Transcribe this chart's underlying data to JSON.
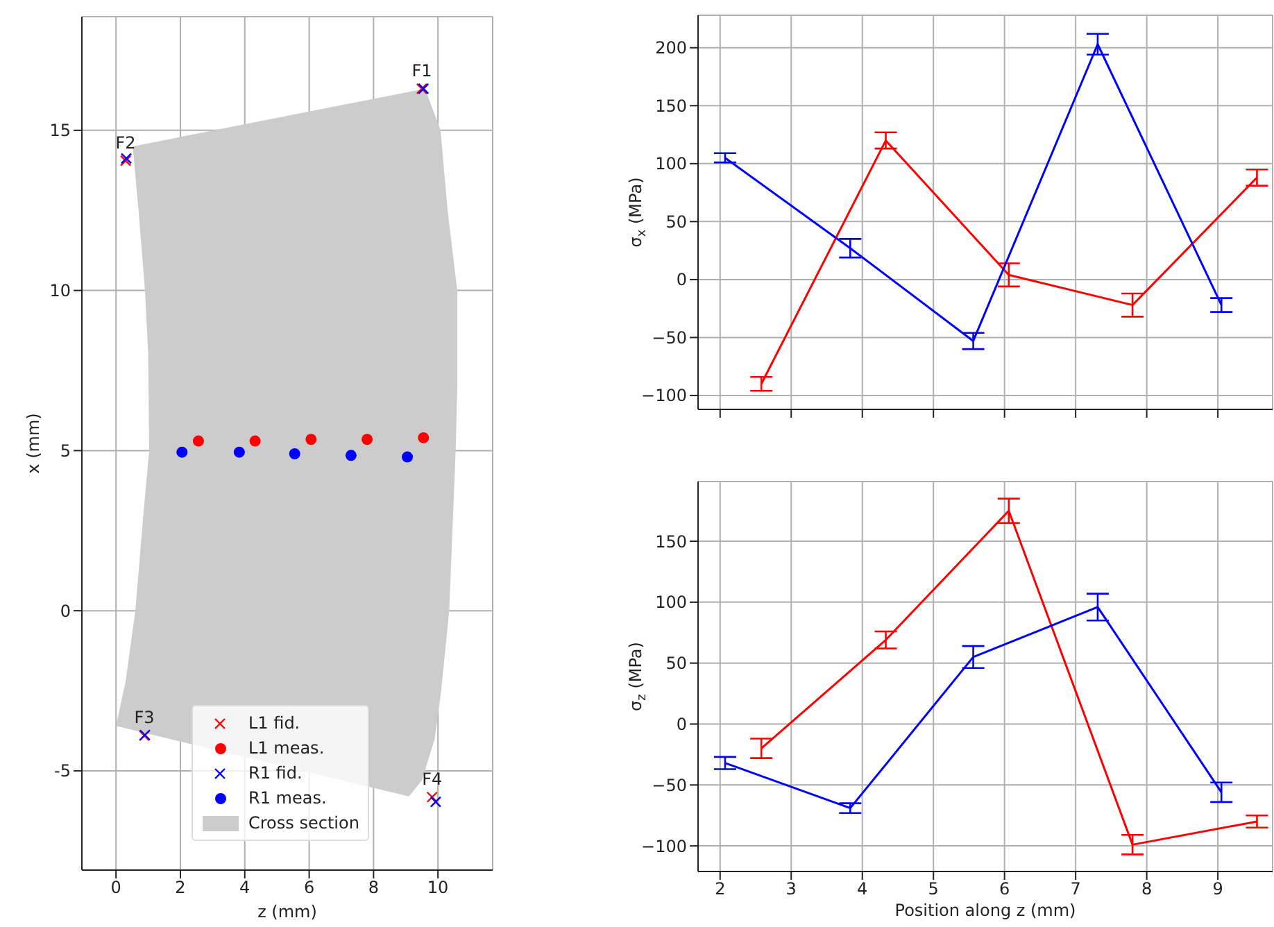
{
  "chart_data": [
    {
      "type": "scatter",
      "xlabel": "z (mm)",
      "ylabel": "x (mm)",
      "xlim": [
        -1.06,
        11.7
      ],
      "ylim": [
        -8.1,
        18.55
      ],
      "xticks": [
        0,
        2,
        4,
        6,
        8,
        10
      ],
      "yticks": [
        -5,
        0,
        5,
        10,
        15
      ],
      "grid": true,
      "legend": "bottom",
      "annotations": [
        {
          "text": "F1",
          "x": 9.5,
          "y": 16.3
        },
        {
          "text": "F2",
          "x": 0.3,
          "y": 14.05
        },
        {
          "text": "F3",
          "x": 0.88,
          "y": -3.9
        },
        {
          "text": "F4",
          "x": 9.82,
          "y": -5.82
        }
      ],
      "series": [
        {
          "name": "Cross section",
          "type": "area",
          "color": "#cccccc",
          "x": [
            0.52,
            9.6,
            10.08,
            10.3,
            10.6,
            10.6,
            10.55,
            10.35,
            10.1,
            9.9,
            9.5,
            9.1,
            0,
            0.3,
            0.6,
            0.85,
            1.03,
            1.0,
            0.9,
            0.7,
            0.52
          ],
          "values": [
            14.5,
            16.3,
            15,
            12.5,
            10,
            7,
            5,
            0,
            -2.5,
            -4,
            -5.3,
            -5.8,
            -3.6,
            -2.2,
            0,
            3,
            5,
            8,
            10,
            12.5,
            14.5
          ]
        },
        {
          "name": "L1 fid.",
          "color": "#ff0000",
          "marker": "cross",
          "x": [
            9.5,
            0.3,
            0.88,
            9.82
          ],
          "values": [
            16.3,
            14.05,
            -3.9,
            -5.82
          ]
        },
        {
          "name": "L1 meas.",
          "color": "#ff0000",
          "marker": "circle",
          "x": [
            2.56,
            4.32,
            6.06,
            7.8,
            9.55
          ],
          "values": [
            5.3,
            5.3,
            5.35,
            5.35,
            5.4
          ]
        },
        {
          "name": "R1 fid.",
          "color": "#0000ff",
          "marker": "cross",
          "x": [
            9.55,
            0.32,
            0.9,
            9.93
          ],
          "values": [
            16.3,
            14.12,
            -3.88,
            -5.97
          ]
        },
        {
          "name": "R1 meas.",
          "color": "#0000ff",
          "marker": "circle",
          "x": [
            2.05,
            3.83,
            5.55,
            7.3,
            9.05
          ],
          "values": [
            4.95,
            4.95,
            4.9,
            4.85,
            4.8
          ]
        }
      ]
    },
    {
      "type": "line",
      "ylabel": "σ$_{x}$ (MPa)",
      "xlim": [
        1.69,
        9.77
      ],
      "ylim": [
        -112,
        228
      ],
      "xticks": [
        2,
        3,
        4,
        5,
        6,
        7,
        8,
        9
      ],
      "yticks": [
        -100,
        -50,
        0,
        50,
        100,
        150,
        200
      ],
      "grid": true,
      "tick_labels": "y",
      "series": [
        {
          "color": "#ff0000",
          "x": [
            2.58,
            4.33,
            6.06,
            7.8,
            9.55
          ],
          "values": [
            -90,
            120,
            4,
            -22,
            88
          ],
          "errors": [
            6,
            7,
            10,
            10,
            7
          ]
        },
        {
          "color": "#0000ff",
          "x": [
            2.07,
            3.83,
            5.56,
            7.31,
            9.05
          ],
          "values": [
            105,
            27,
            -53,
            203,
            -22
          ],
          "errors": [
            4,
            8,
            7,
            9,
            6
          ]
        }
      ]
    },
    {
      "type": "line",
      "xlabel": "Position along z (mm)",
      "ylabel": "σ$_{z}$ (MPa)",
      "xlim": [
        1.69,
        9.77
      ],
      "ylim": [
        -121,
        199
      ],
      "xticks": [
        2,
        3,
        4,
        5,
        6,
        7,
        8,
        9
      ],
      "yticks": [
        -100,
        -50,
        0,
        50,
        100,
        150
      ],
      "grid": true,
      "series": [
        {
          "color": "#ff0000",
          "x": [
            2.58,
            4.33,
            6.06,
            7.8,
            9.55
          ],
          "values": [
            -20,
            69,
            175,
            -99,
            -80
          ],
          "errors": [
            8,
            7,
            10,
            8,
            5
          ]
        },
        {
          "color": "#0000ff",
          "x": [
            2.07,
            3.83,
            5.56,
            7.31,
            9.05
          ],
          "values": [
            -32,
            -69,
            55,
            96,
            -56
          ],
          "errors": [
            5,
            4,
            9,
            11,
            8
          ]
        }
      ]
    }
  ]
}
